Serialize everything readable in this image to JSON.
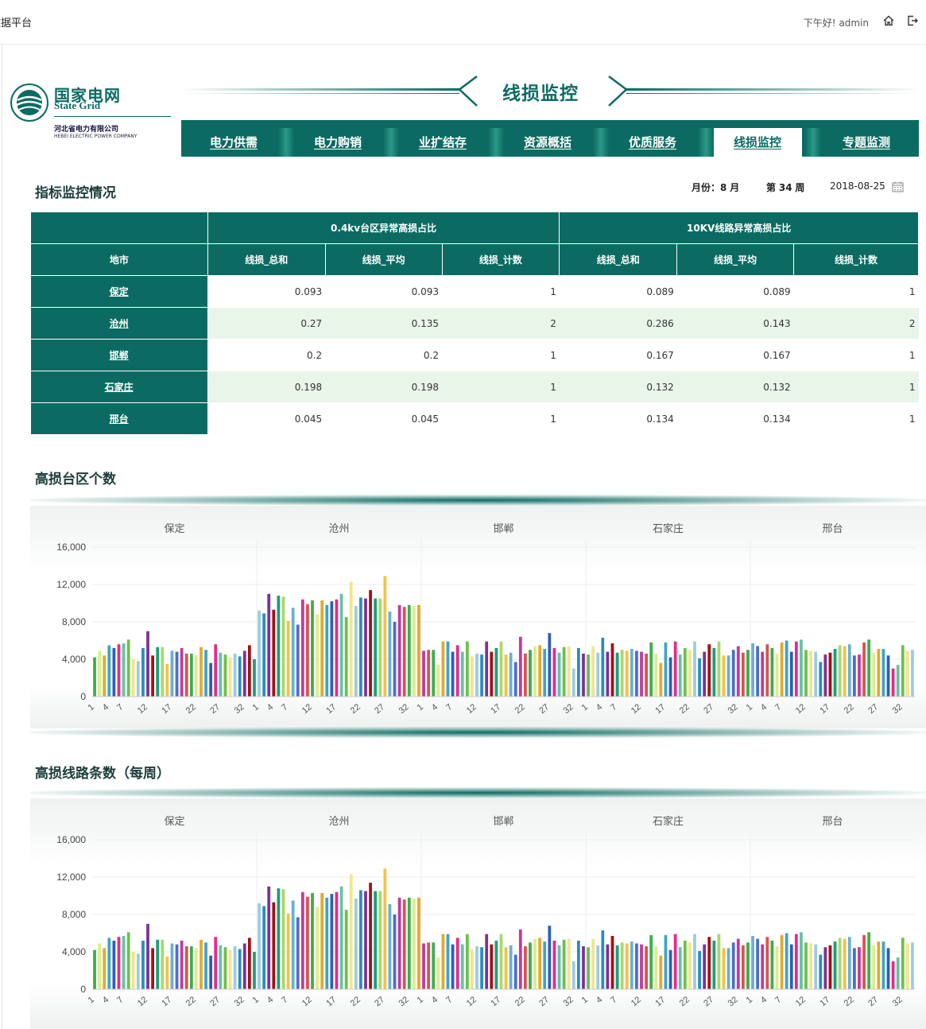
{
  "app": {
    "title": "数据平台",
    "greeting": "下午好! admin",
    "home_icon": "home-icon",
    "logout_icon": "logout-icon"
  },
  "logo": {
    "cn": "国家电网",
    "en": "State Grid",
    "sub_cn": "河北省电力有限公司",
    "sub_en": "HEBEI ELECTRIC POWER COMPANY"
  },
  "header": {
    "title": "线损监控"
  },
  "nav": {
    "items": [
      {
        "label": "电力供需",
        "active": false
      },
      {
        "label": "电力购销",
        "active": false
      },
      {
        "label": "业扩结存",
        "active": false
      },
      {
        "label": "资源概括",
        "active": false
      },
      {
        "label": "优质服务",
        "active": false
      },
      {
        "label": "线损监控",
        "active": true
      },
      {
        "label": "专题监测",
        "active": false
      }
    ]
  },
  "monitor": {
    "title": "指标监控情况",
    "month_label": "月份：",
    "month_value": "8",
    "month_unit": "月",
    "week_prefix": "第",
    "week_value": "34",
    "week_unit": "周",
    "date": "2018-08-25",
    "calendar_icon": "calendar-icon"
  },
  "table": {
    "group1": "0.4kv台区异常高损占比",
    "group2": "10KV线路异常高损占比",
    "city_header": "地市",
    "columns": [
      "线损_总和",
      "线损_平均",
      "线损_计数",
      "线损_总和",
      "线损_平均",
      "线损_计数"
    ],
    "rows": [
      {
        "city": "保定",
        "values": [
          "0.093",
          "0.093",
          "1",
          "0.089",
          "0.089",
          "1"
        ]
      },
      {
        "city": "沧州",
        "values": [
          "0.27",
          "0.135",
          "2",
          "0.286",
          "0.143",
          "2"
        ]
      },
      {
        "city": "邯郸",
        "values": [
          "0.2",
          "0.2",
          "1",
          "0.167",
          "0.167",
          "1"
        ]
      },
      {
        "city": "石家庄",
        "values": [
          "0.198",
          "0.198",
          "1",
          "0.132",
          "0.132",
          "1"
        ]
      },
      {
        "city": "邢台",
        "values": [
          "0.045",
          "0.045",
          "1",
          "0.134",
          "0.134",
          "1"
        ]
      }
    ]
  },
  "charts": {
    "chart1_title": "高损台区个数",
    "chart2_title": "高损线路条数（每周）"
  },
  "chart_data": [
    {
      "type": "bar",
      "title": "高损台区个数",
      "panels": [
        "保定",
        "沧州",
        "邯郸",
        "石家庄",
        "邢台"
      ],
      "ylim": [
        0,
        16000
      ],
      "yticks": [
        "0",
        "4,000",
        "8,000",
        "12,000",
        "16,000"
      ],
      "xticks": [
        "1",
        "4",
        "7",
        "12",
        "17",
        "22",
        "27",
        "32"
      ],
      "x": [
        1,
        2,
        3,
        4,
        5,
        6,
        7,
        8,
        9,
        10,
        11,
        12,
        13,
        14,
        15,
        16,
        17,
        18,
        19,
        20,
        21,
        22,
        23,
        24,
        25,
        26,
        27,
        28,
        29,
        30,
        31,
        32,
        33,
        34
      ],
      "series": [
        {
          "values": [
            4200,
            4900,
            4400,
            5500,
            5200,
            5600,
            5700,
            6100,
            4000,
            3800,
            5200,
            7000,
            4400,
            5300,
            5300,
            3500,
            4900,
            4800,
            5200,
            4600,
            4600,
            4400,
            5300,
            5000,
            3600,
            5600,
            4700,
            4500,
            4200,
            4600,
            4300,
            4900,
            5500,
            4000
          ]
        },
        {
          "values": [
            9200,
            8900,
            11000,
            9300,
            10800,
            10700,
            8100,
            9500,
            7700,
            10400,
            9900,
            10300,
            8800,
            10300,
            9800,
            10200,
            10400,
            11000,
            8500,
            12300,
            9700,
            10600,
            10500,
            11400,
            10500,
            10500,
            12900,
            9100,
            8000,
            9800,
            9600,
            9800,
            9700,
            9800
          ]
        },
        {
          "values": [
            4900,
            5000,
            5000,
            3400,
            5900,
            5900,
            4800,
            5500,
            4800,
            5900,
            4300,
            4600,
            4500,
            5900,
            4800,
            5200,
            5900,
            4500,
            4700,
            3700,
            6400,
            4600,
            5000,
            5400,
            5500,
            5100,
            6800,
            5200,
            4700,
            5300,
            5400,
            3000,
            5200,
            4600
          ]
        },
        {
          "values": [
            4500,
            5400,
            4700,
            6300,
            4800,
            5700,
            4700,
            5000,
            4900,
            5100,
            4900,
            4800,
            4600,
            5800,
            4600,
            3600,
            5800,
            4200,
            5900,
            4500,
            5200,
            5000,
            5900,
            4100,
            4800,
            5600,
            5200,
            5900,
            4400,
            4400,
            5000,
            5400,
            4700,
            5000
          ]
        },
        {
          "values": [
            5700,
            5400,
            4800,
            5600,
            5200,
            4600,
            5800,
            6000,
            4800,
            5900,
            6100,
            5000,
            4900,
            4800,
            3700,
            4500,
            4700,
            5100,
            5500,
            5400,
            5600,
            4400,
            4500,
            5800,
            6100,
            4700,
            5100,
            5100,
            4400,
            3000,
            3400,
            5500,
            4900,
            5000
          ]
        }
      ]
    },
    {
      "type": "bar",
      "title": "高损线路条数（每周）",
      "panels": [
        "保定",
        "沧州",
        "邯郸",
        "石家庄",
        "邢台"
      ],
      "ylim": [
        0,
        16000
      ],
      "yticks": [
        "0",
        "4,000",
        "8,000",
        "12,000",
        "16,000"
      ],
      "xticks": [
        "1",
        "4",
        "7",
        "12",
        "17",
        "22",
        "27",
        "32"
      ],
      "x": [
        1,
        2,
        3,
        4,
        5,
        6,
        7,
        8,
        9,
        10,
        11,
        12,
        13,
        14,
        15,
        16,
        17,
        18,
        19,
        20,
        21,
        22,
        23,
        24,
        25,
        26,
        27,
        28,
        29,
        30,
        31,
        32,
        33,
        34
      ],
      "series": [
        {
          "values": [
            4200,
            4900,
            4400,
            5500,
            5200,
            5600,
            5700,
            6100,
            4000,
            3800,
            5200,
            7000,
            4400,
            5300,
            5300,
            3500,
            4900,
            4800,
            5200,
            4600,
            4600,
            4400,
            5300,
            5000,
            3600,
            5600,
            4700,
            4500,
            4200,
            4600,
            4300,
            4900,
            5500,
            4000
          ]
        },
        {
          "values": [
            9200,
            8900,
            11000,
            9300,
            10800,
            10700,
            8100,
            9500,
            7700,
            10400,
            9900,
            10300,
            8800,
            10300,
            9800,
            10200,
            10400,
            11000,
            8500,
            12300,
            9700,
            10600,
            10500,
            11400,
            10500,
            10500,
            12900,
            9100,
            8000,
            9800,
            9600,
            9800,
            9700,
            9800
          ]
        },
        {
          "values": [
            4900,
            5000,
            5000,
            3400,
            5900,
            5900,
            4800,
            5500,
            4800,
            5900,
            4300,
            4600,
            4500,
            5900,
            4800,
            5200,
            5900,
            4500,
            4700,
            3700,
            6400,
            4600,
            5000,
            5400,
            5500,
            5100,
            6800,
            5200,
            4700,
            5300,
            5400,
            3000,
            5200,
            4600
          ]
        },
        {
          "values": [
            4500,
            5400,
            4700,
            6300,
            4800,
            5700,
            4700,
            5000,
            4900,
            5100,
            4900,
            4800,
            4600,
            5800,
            4600,
            3600,
            5800,
            4200,
            5900,
            4500,
            5200,
            5000,
            5900,
            4100,
            4800,
            5600,
            5200,
            5900,
            4400,
            4400,
            5000,
            5400,
            4700,
            5000
          ]
        },
        {
          "values": [
            5700,
            5400,
            4800,
            5600,
            5200,
            4600,
            5800,
            6000,
            4800,
            5900,
            6100,
            5000,
            4900,
            4800,
            3700,
            4500,
            4700,
            5100,
            5500,
            5400,
            5600,
            4400,
            4500,
            5800,
            6100,
            4700,
            5100,
            5100,
            4400,
            3000,
            3400,
            5500,
            4900,
            5000
          ]
        }
      ]
    }
  ],
  "palette": [
    "#3cae49",
    "#6cc04a",
    "#a6d96a",
    "#d9ef8b",
    "#f0e68c",
    "#f5c342",
    "#e3a92f",
    "#9ecae1",
    "#6baed6",
    "#3ea4c8",
    "#2b8cbe",
    "#4a6fc7",
    "#2c5fb5",
    "#7b3294",
    "#c2399d",
    "#e7298a",
    "#a50f15",
    "#d9534f",
    "#66c2a5",
    "#1b9e77"
  ]
}
